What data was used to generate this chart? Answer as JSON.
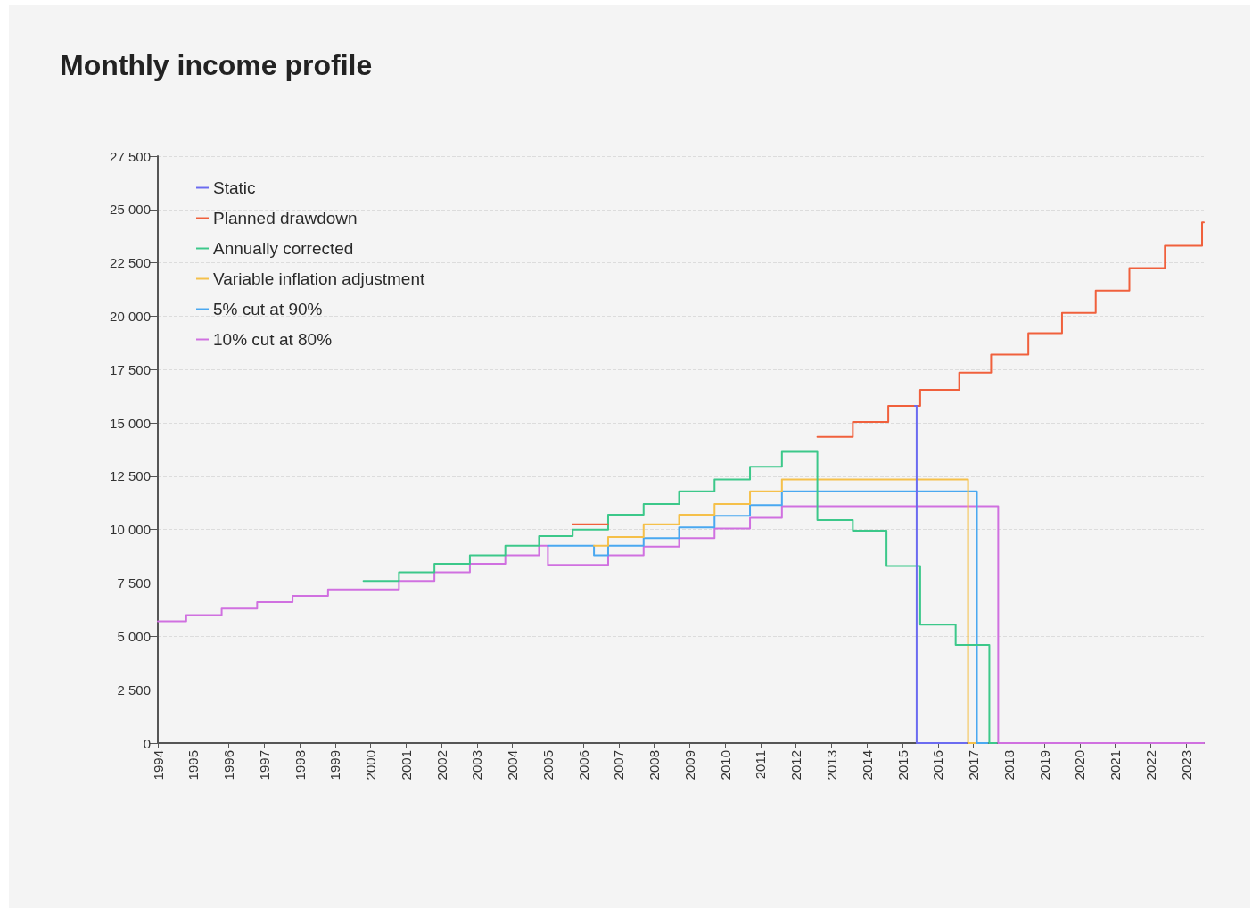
{
  "chart_data": {
    "type": "step",
    "title": "Monthly income profile",
    "xlim": [
      1994,
      2023.5
    ],
    "xticks": [
      1994,
      1995,
      1996,
      1997,
      1998,
      1999,
      2000,
      2001,
      2002,
      2003,
      2004,
      2005,
      2006,
      2007,
      2008,
      2009,
      2010,
      2011,
      2012,
      2013,
      2014,
      2015,
      2016,
      2017,
      2018,
      2019,
      2020,
      2021,
      2022,
      2023
    ],
    "ylim": [
      0,
      27500
    ],
    "yticks": [
      {
        "value": 0,
        "label": "0"
      },
      {
        "value": 2500,
        "label": "2 500"
      },
      {
        "value": 5000,
        "label": "5 000"
      },
      {
        "value": 7500,
        "label": "7 500"
      },
      {
        "value": 10000,
        "label": "10 000"
      },
      {
        "value": 12500,
        "label": "12 500"
      },
      {
        "value": 15000,
        "label": "15 000"
      },
      {
        "value": 17500,
        "label": "17 500"
      },
      {
        "value": 20000,
        "label": "20 000"
      },
      {
        "value": 22500,
        "label": "22 500"
      },
      {
        "value": 25000,
        "label": "25 000"
      },
      {
        "value": 27500,
        "label": "27 500"
      }
    ],
    "grid": "y",
    "legend": "top left",
    "marker": "none",
    "line_style": "solid",
    "series": [
      {
        "name": "Static",
        "color": "#6b6bf0",
        "x": [
          2015.35,
          2015.4,
          2016.8
        ],
        "values": [
          15800,
          0,
          0
        ]
      },
      {
        "name": "Planned drawdown",
        "color": "#f0603c",
        "x": [
          2005.7,
          2006.69,
          2006.7,
          2012.6,
          2013.6,
          2014.6,
          2015.5,
          2016.6,
          2017.5,
          2018.55,
          2019.5,
          2020.45,
          2021.4,
          2022.4,
          2023.45,
          2023.5
        ],
        "values": [
          10250,
          10250,
          null,
          14350,
          15050,
          15800,
          16550,
          17350,
          18200,
          19200,
          20150,
          21200,
          22250,
          23300,
          24400,
          24400
        ]
      },
      {
        "name": "Annually corrected",
        "color": "#3cc88a",
        "x": [
          1999.8,
          2000.8,
          2001.8,
          2002.8,
          2003.8,
          2004.75,
          2005.7,
          2006.7,
          2007.7,
          2008.7,
          2009.7,
          2010.7,
          2011.6,
          2012.6,
          2013.6,
          2014.55,
          2015.5,
          2016.5,
          2017.45,
          2017.65
        ],
        "values": [
          7600,
          8000,
          8400,
          8800,
          9250,
          9700,
          10000,
          10700,
          11200,
          11800,
          12350,
          12950,
          13650,
          10450,
          9950,
          8300,
          5550,
          4600,
          0,
          0
        ]
      },
      {
        "name": "Variable inflation adjustment",
        "color": "#f5c04a",
        "x": [
          2006.3,
          2006.7,
          2007.7,
          2008.7,
          2009.7,
          2010.7,
          2011.6,
          2016.85,
          2017.05
        ],
        "values": [
          9250,
          9650,
          10250,
          10700,
          11200,
          11800,
          12350,
          0,
          0
        ]
      },
      {
        "name": "5% cut at 90%",
        "color": "#4aa8f0",
        "x": [
          2005.0,
          2006.3,
          2006.7,
          2007.7,
          2008.7,
          2009.7,
          2010.7,
          2011.6,
          2017.1,
          2017.4
        ],
        "values": [
          9250,
          8800,
          9250,
          9600,
          10100,
          10650,
          11150,
          11800,
          0,
          0
        ]
      },
      {
        "name": "10% cut at 80%",
        "color": "#d070e0",
        "x": [
          1994,
          1994.8,
          1995.8,
          1996.8,
          1997.8,
          1998.8,
          2000.8,
          2001.8,
          2002.8,
          2003.8,
          2004.75,
          2005.0,
          2006.7,
          2007.7,
          2008.7,
          2009.7,
          2010.7,
          2011.6,
          2017.7,
          2023.5
        ],
        "values": [
          5700,
          6000,
          6300,
          6600,
          6900,
          7200,
          7600,
          8000,
          8400,
          8800,
          9250,
          8350,
          8800,
          9200,
          9600,
          10050,
          10550,
          11100,
          0,
          0
        ]
      }
    ]
  }
}
